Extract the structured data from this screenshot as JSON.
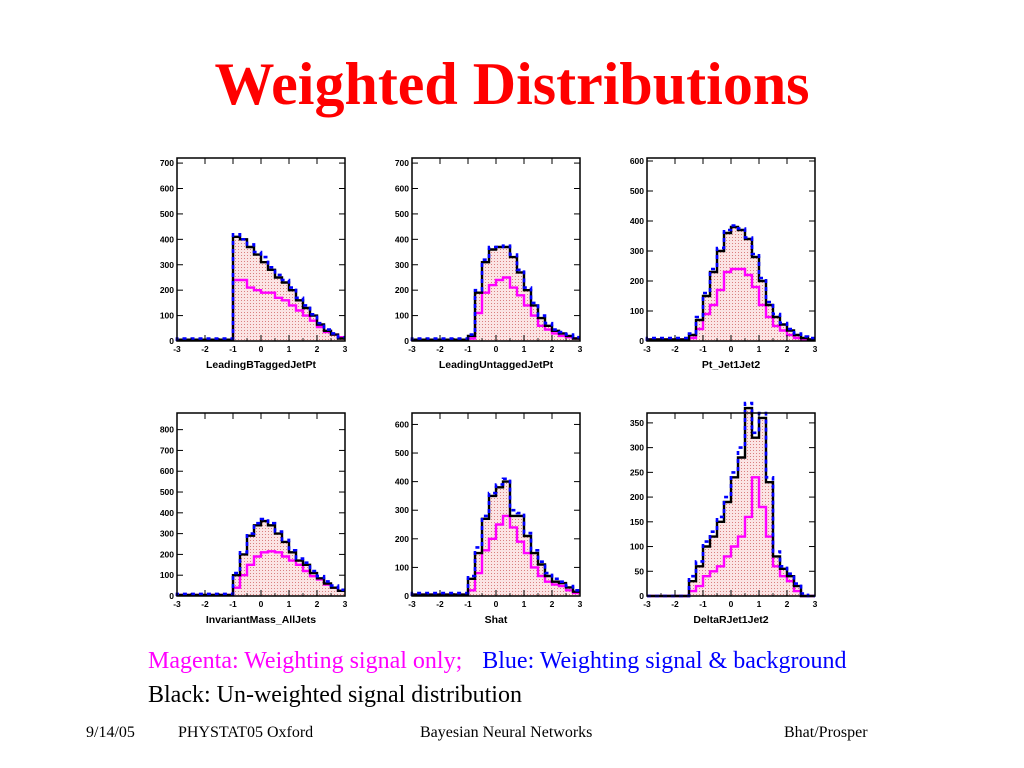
{
  "title": "Weighted Distributions",
  "legend": {
    "magenta": "Magenta: Weighting signal only;",
    "blue": "Blue: Weighting signal & background",
    "black": "Black: Un-weighted signal distribution"
  },
  "colors": {
    "title": "#ff0000",
    "magenta": "#ff00ff",
    "blue": "#0000ff",
    "black": "#000000",
    "fill": "#f4c0c0"
  },
  "footer": {
    "date": "9/14/05",
    "conference": "PHYSTAT05 Oxford",
    "topic": "Bayesian Neural Networks",
    "authors": "Bhat/Prosper"
  },
  "chart_data": [
    {
      "type": "histogram",
      "xlabel": "LeadingBTaggedJetPt",
      "xlim": [
        -3,
        3
      ],
      "ylim": [
        0,
        720
      ],
      "xticks": [
        -3,
        -2,
        -1,
        0,
        1,
        2,
        3
      ],
      "yticks": [
        0,
        100,
        200,
        300,
        400,
        500,
        600,
        700
      ],
      "bin_edges": [
        -3,
        -2.75,
        -2.5,
        -2.25,
        -2,
        -1.75,
        -1.5,
        -1.25,
        -1,
        -0.75,
        -0.5,
        -0.25,
        0,
        0.25,
        0.5,
        0.75,
        1,
        1.25,
        1.5,
        1.75,
        2,
        2.25,
        2.5,
        2.75,
        3
      ],
      "series": [
        {
          "name": "Magenta",
          "color": "#ff00ff",
          "values": [
            5,
            5,
            5,
            5,
            5,
            5,
            5,
            5,
            240,
            240,
            210,
            200,
            190,
            190,
            170,
            160,
            140,
            120,
            100,
            80,
            55,
            35,
            25,
            15
          ]
        },
        {
          "name": "Black",
          "color": "#000000",
          "values": [
            5,
            5,
            5,
            5,
            5,
            5,
            5,
            5,
            410,
            400,
            370,
            340,
            310,
            280,
            250,
            230,
            200,
            160,
            130,
            100,
            65,
            40,
            25,
            10
          ]
        },
        {
          "name": "Blue",
          "color": "#0000ff",
          "values": [
            10,
            10,
            10,
            10,
            10,
            10,
            10,
            10,
            420,
            400,
            380,
            350,
            330,
            290,
            260,
            240,
            210,
            170,
            140,
            105,
            70,
            45,
            30,
            15
          ]
        }
      ]
    },
    {
      "type": "histogram",
      "xlabel": "LeadingUntaggedJetPt",
      "xlim": [
        -3,
        3
      ],
      "ylim": [
        0,
        720
      ],
      "xticks": [
        -3,
        -2,
        -1,
        0,
        1,
        2,
        3
      ],
      "yticks": [
        0,
        100,
        200,
        300,
        400,
        500,
        600,
        700
      ],
      "bin_edges": [
        -3,
        -2.75,
        -2.5,
        -2.25,
        -2,
        -1.75,
        -1.5,
        -1.25,
        -1,
        -0.75,
        -0.5,
        -0.25,
        0,
        0.25,
        0.5,
        0.75,
        1,
        1.25,
        1.5,
        1.75,
        2,
        2.25,
        2.5,
        2.75,
        3
      ],
      "series": [
        {
          "name": "Magenta",
          "color": "#ff00ff",
          "values": [
            5,
            5,
            5,
            5,
            5,
            5,
            5,
            5,
            10,
            110,
            190,
            220,
            240,
            250,
            210,
            180,
            140,
            100,
            60,
            45,
            30,
            20,
            15,
            10
          ]
        },
        {
          "name": "Black",
          "color": "#000000",
          "values": [
            5,
            5,
            5,
            5,
            5,
            5,
            5,
            5,
            20,
            190,
            310,
            360,
            370,
            370,
            330,
            270,
            200,
            140,
            90,
            60,
            40,
            30,
            20,
            10
          ]
        },
        {
          "name": "Blue",
          "color": "#0000ff",
          "values": [
            10,
            10,
            10,
            10,
            10,
            10,
            10,
            10,
            25,
            200,
            320,
            370,
            370,
            375,
            340,
            280,
            210,
            150,
            100,
            70,
            45,
            35,
            25,
            15
          ]
        }
      ]
    },
    {
      "type": "histogram",
      "xlabel": "Pt_Jet1Jet2",
      "xlim": [
        -3,
        3
      ],
      "ylim": [
        0,
        610
      ],
      "xticks": [
        -3,
        -2,
        -1,
        0,
        1,
        2,
        3
      ],
      "yticks": [
        0,
        100,
        200,
        300,
        400,
        500,
        600
      ],
      "bin_edges": [
        -3,
        -2.75,
        -2.5,
        -2.25,
        -2,
        -1.75,
        -1.5,
        -1.25,
        -1,
        -0.75,
        -0.5,
        -0.25,
        0,
        0.25,
        0.5,
        0.75,
        1,
        1.25,
        1.5,
        1.75,
        2,
        2.25,
        2.5,
        2.75,
        3
      ],
      "series": [
        {
          "name": "Magenta",
          "color": "#ff00ff",
          "values": [
            5,
            5,
            5,
            5,
            5,
            5,
            10,
            40,
            90,
            120,
            170,
            230,
            240,
            240,
            220,
            180,
            120,
            80,
            50,
            35,
            20,
            10,
            5,
            5
          ]
        },
        {
          "name": "Black",
          "color": "#000000",
          "values": [
            5,
            5,
            5,
            5,
            5,
            5,
            20,
            70,
            150,
            230,
            300,
            360,
            380,
            370,
            340,
            280,
            200,
            120,
            80,
            55,
            35,
            20,
            10,
            5
          ]
        },
        {
          "name": "Blue",
          "color": "#0000ff",
          "values": [
            10,
            10,
            10,
            10,
            10,
            10,
            25,
            80,
            160,
            240,
            310,
            370,
            385,
            375,
            345,
            290,
            210,
            130,
            90,
            60,
            40,
            25,
            15,
            10
          ]
        }
      ]
    },
    {
      "type": "histogram",
      "xlabel": "InvariantMass_AllJets",
      "xlim": [
        -3,
        3
      ],
      "ylim": [
        0,
        880
      ],
      "xticks": [
        -3,
        -2,
        -1,
        0,
        1,
        2,
        3
      ],
      "yticks": [
        0,
        100,
        200,
        300,
        400,
        500,
        600,
        700,
        800
      ],
      "bin_edges": [
        -3,
        -2.75,
        -2.5,
        -2.25,
        -2,
        -1.75,
        -1.5,
        -1.25,
        -1,
        -0.75,
        -0.5,
        -0.25,
        0,
        0.25,
        0.5,
        0.75,
        1,
        1.25,
        1.5,
        1.75,
        2,
        2.25,
        2.5,
        2.75,
        3
      ],
      "series": [
        {
          "name": "Magenta",
          "color": "#ff00ff",
          "values": [
            5,
            5,
            5,
            5,
            5,
            5,
            5,
            5,
            40,
            100,
            150,
            190,
            210,
            215,
            210,
            190,
            170,
            150,
            120,
            95,
            80,
            55,
            40,
            25
          ]
        },
        {
          "name": "Black",
          "color": "#000000",
          "values": [
            5,
            5,
            5,
            5,
            5,
            5,
            5,
            5,
            100,
            200,
            290,
            340,
            360,
            340,
            300,
            260,
            210,
            170,
            150,
            110,
            85,
            60,
            40,
            25
          ]
        },
        {
          "name": "Blue",
          "color": "#0000ff",
          "values": [
            10,
            10,
            10,
            10,
            10,
            10,
            10,
            10,
            110,
            210,
            300,
            350,
            370,
            350,
            310,
            270,
            220,
            180,
            160,
            120,
            95,
            70,
            50,
            30
          ]
        }
      ]
    },
    {
      "type": "histogram",
      "xlabel": "Shat",
      "xlim": [
        -3,
        3
      ],
      "ylim": [
        0,
        640
      ],
      "xticks": [
        -3,
        -2,
        -1,
        0,
        1,
        2,
        3
      ],
      "yticks": [
        0,
        100,
        200,
        300,
        400,
        500,
        600
      ],
      "bin_edges": [
        -3,
        -2.75,
        -2.5,
        -2.25,
        -2,
        -1.75,
        -1.5,
        -1.25,
        -1,
        -0.75,
        -0.5,
        -0.25,
        0,
        0.25,
        0.5,
        0.75,
        1,
        1.25,
        1.5,
        1.75,
        2,
        2.25,
        2.5,
        2.75,
        3
      ],
      "series": [
        {
          "name": "Magenta",
          "color": "#ff00ff",
          "values": [
            5,
            5,
            5,
            5,
            5,
            5,
            5,
            5,
            20,
            80,
            160,
            200,
            250,
            280,
            240,
            190,
            150,
            100,
            70,
            50,
            40,
            35,
            20,
            10
          ]
        },
        {
          "name": "Black",
          "color": "#000000",
          "values": [
            5,
            5,
            5,
            5,
            5,
            5,
            5,
            5,
            60,
            150,
            270,
            350,
            380,
            400,
            280,
            280,
            210,
            150,
            110,
            70,
            50,
            45,
            30,
            15
          ]
        },
        {
          "name": "Blue",
          "color": "#0000ff",
          "values": [
            10,
            10,
            10,
            10,
            10,
            10,
            10,
            10,
            70,
            170,
            280,
            360,
            390,
            410,
            300,
            290,
            220,
            160,
            120,
            80,
            60,
            50,
            35,
            20
          ]
        }
      ]
    },
    {
      "type": "histogram",
      "xlabel": "DeltaRJet1Jet2",
      "xlim": [
        -3,
        3
      ],
      "ylim": [
        0,
        370
      ],
      "xticks": [
        -3,
        -2,
        -1,
        0,
        1,
        2,
        3
      ],
      "yticks": [
        0,
        50,
        100,
        150,
        200,
        250,
        300,
        350
      ],
      "bin_edges": [
        -3,
        -2.75,
        -2.5,
        -2.25,
        -2,
        -1.75,
        -1.5,
        -1.25,
        -1,
        -0.75,
        -0.5,
        -0.25,
        0,
        0.25,
        0.5,
        0.75,
        1,
        1.25,
        1.5,
        1.75,
        2,
        2.25,
        2.5,
        2.75,
        3
      ],
      "series": [
        {
          "name": "Magenta",
          "color": "#ff00ff",
          "values": [
            0,
            0,
            0,
            0,
            0,
            0,
            10,
            20,
            40,
            50,
            60,
            80,
            100,
            120,
            160,
            240,
            180,
            120,
            60,
            40,
            30,
            10,
            0,
            0
          ]
        },
        {
          "name": "Black",
          "color": "#000000",
          "values": [
            0,
            0,
            0,
            0,
            0,
            0,
            30,
            60,
            100,
            120,
            150,
            190,
            240,
            280,
            380,
            320,
            360,
            230,
            80,
            55,
            40,
            20,
            0,
            0
          ]
        },
        {
          "name": "Blue",
          "color": "#0000ff",
          "values": [
            0,
            0,
            0,
            0,
            0,
            0,
            40,
            70,
            110,
            130,
            160,
            200,
            250,
            300,
            390,
            330,
            370,
            240,
            90,
            60,
            45,
            25,
            5,
            0
          ]
        }
      ]
    }
  ]
}
